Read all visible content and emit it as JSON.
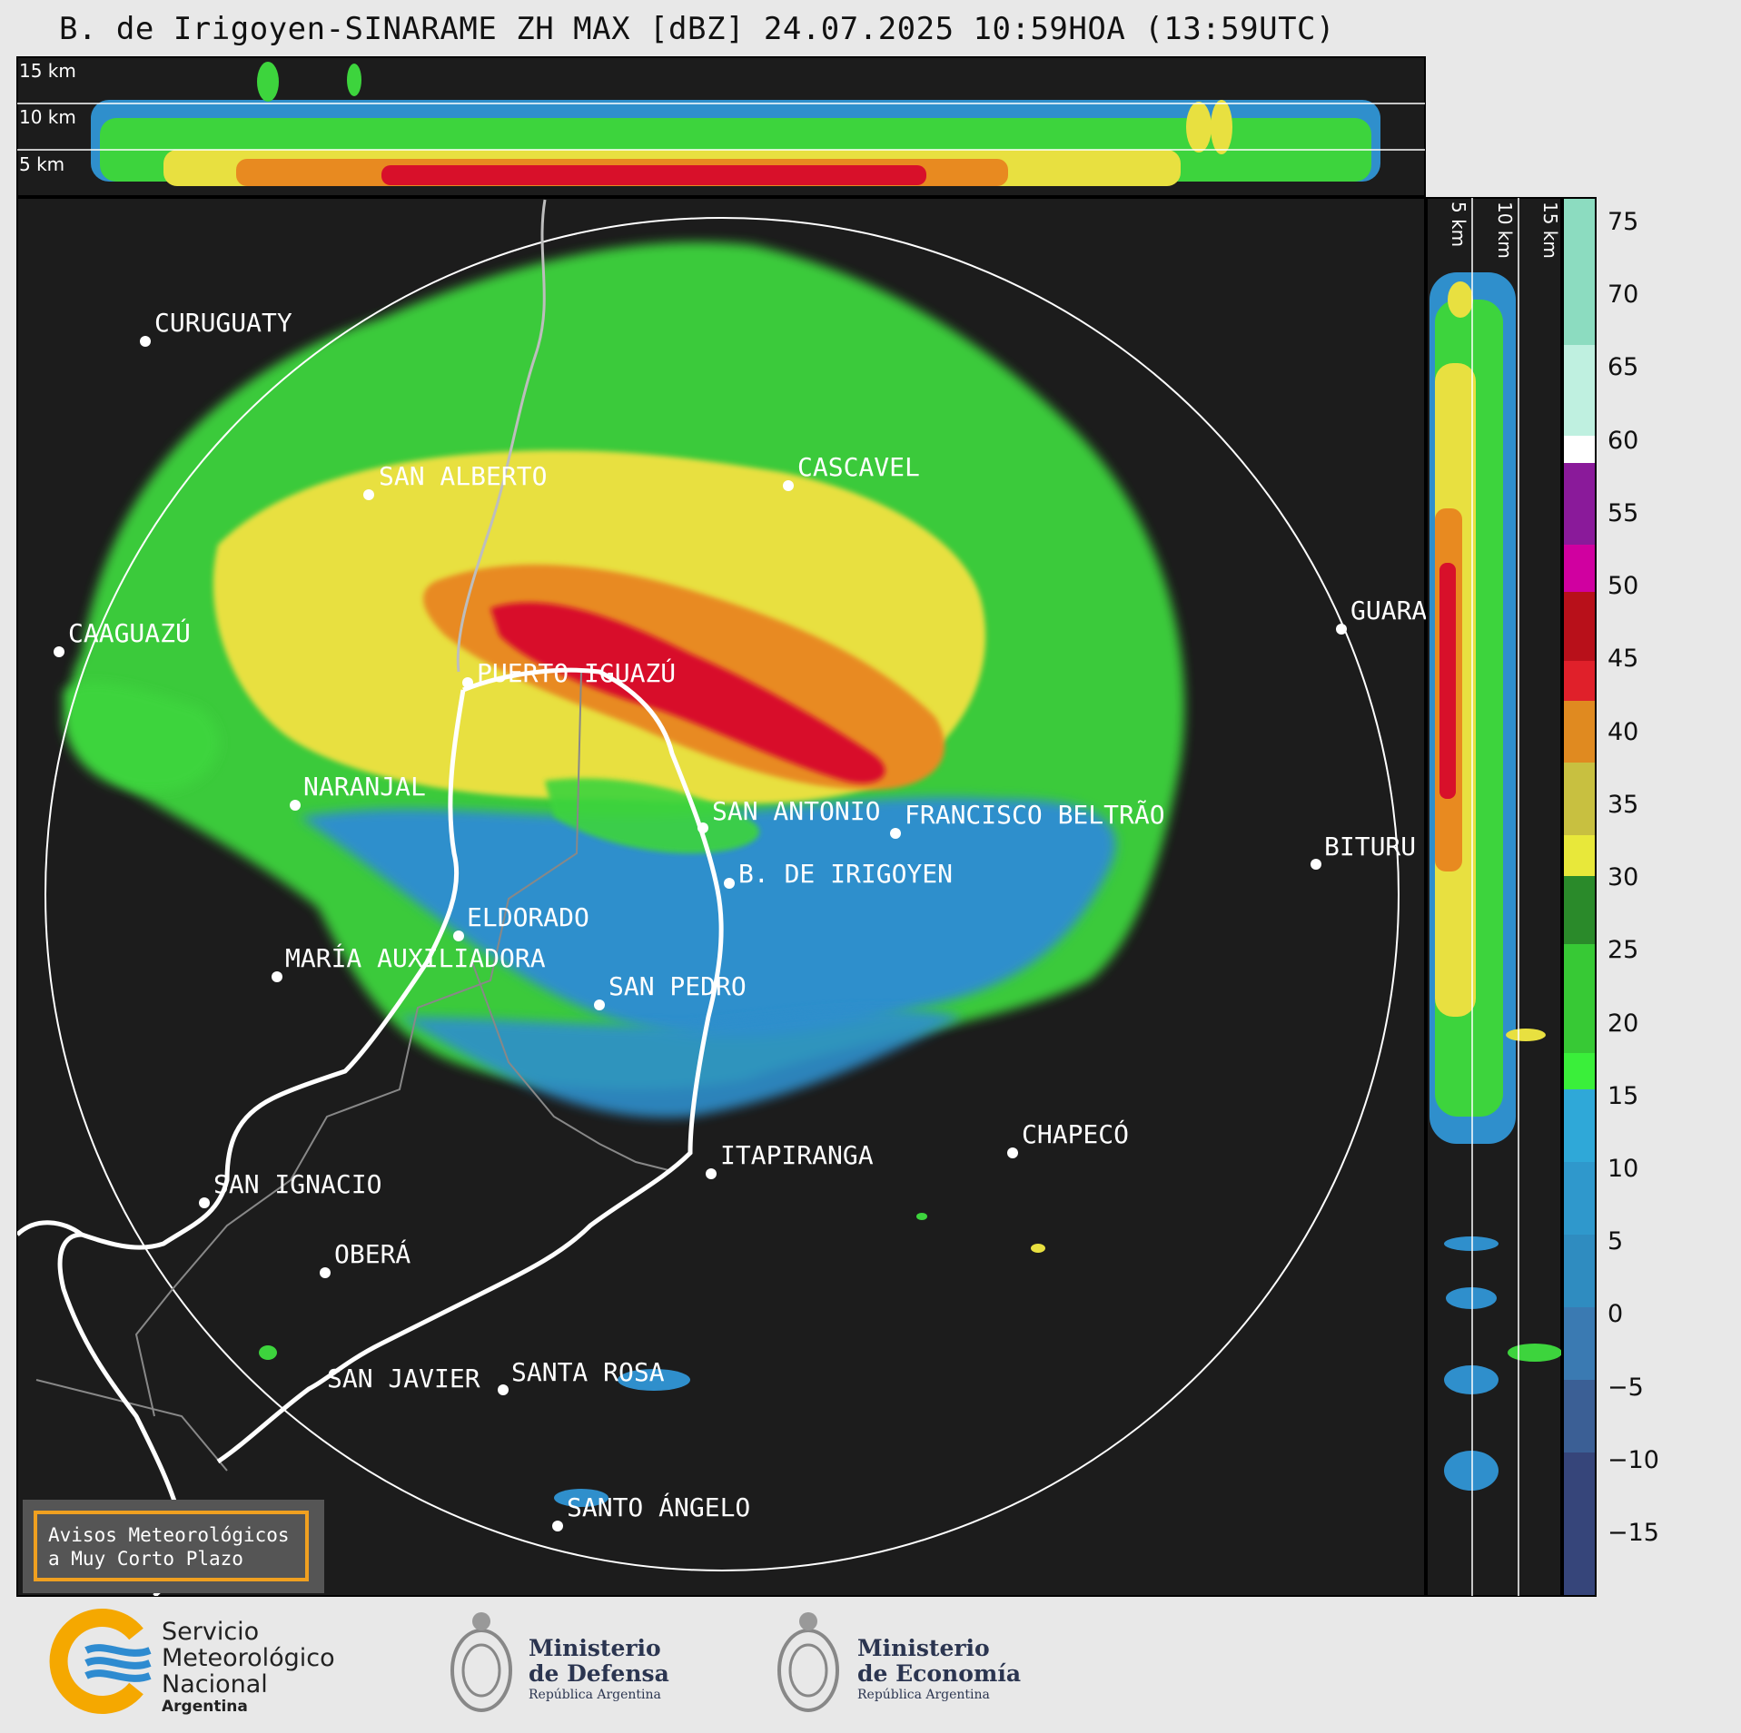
{
  "title": "B. de Irigoyen-SINARAME ZH MAX [dBZ] 24.07.2025 10:59HOA (13:59UTC)",
  "top_section": {
    "km_labels": [
      "15 km",
      "10 km",
      "5 km"
    ]
  },
  "side_section": {
    "km_labels": [
      "5 km",
      "10 km",
      "15 km"
    ]
  },
  "colorbar": {
    "ticks": [
      "75",
      "70",
      "65",
      "60",
      "55",
      "50",
      "45",
      "40",
      "35",
      "30",
      "25",
      "20",
      "15",
      "10",
      "5",
      "0",
      "−5",
      "−10",
      "−15"
    ]
  },
  "cities": [
    {
      "id": "curuguaty",
      "name": "CURUGUATY"
    },
    {
      "id": "san-alberto",
      "name": "SAN ALBERTO"
    },
    {
      "id": "cascavel",
      "name": "CASCAVEL"
    },
    {
      "id": "caaguazu",
      "name": "CAAGUAZÚ"
    },
    {
      "id": "guara",
      "name": "GUARA"
    },
    {
      "id": "puerto-iguazu",
      "name": "PUERTO IGUAZÚ"
    },
    {
      "id": "naranjal",
      "name": "NARANJAL"
    },
    {
      "id": "san-antonio",
      "name": "SAN ANTONIO"
    },
    {
      "id": "francisco-beltrao",
      "name": "FRANCISCO BELTRÃO"
    },
    {
      "id": "bituru",
      "name": "BITURU"
    },
    {
      "id": "b-de-irigoyen",
      "name": "B. DE IRIGOYEN"
    },
    {
      "id": "eldorado",
      "name": "ELDORADO"
    },
    {
      "id": "maria-auxiliadora",
      "name": "MARÍA AUXILIADORA"
    },
    {
      "id": "san-pedro",
      "name": "SAN PEDRO"
    },
    {
      "id": "chapeco",
      "name": "CHAPECÓ"
    },
    {
      "id": "itapiranga",
      "name": "ITAPIRANGA"
    },
    {
      "id": "san-ignacio",
      "name": "SAN IGNACIO"
    },
    {
      "id": "obera",
      "name": "OBERÁ"
    },
    {
      "id": "san-javier",
      "name": "SAN JAVIER"
    },
    {
      "id": "santa-rosa",
      "name": "SANTA ROSA"
    },
    {
      "id": "santo-angelo",
      "name": "SANTO ÁNGELO"
    }
  ],
  "warning_box": {
    "line1": "Avisos Meteorológicos",
    "line2": "a Muy Corto Plazo"
  },
  "logos": {
    "smn": {
      "line1": "Servicio",
      "line2": "Meteorológico",
      "line3": "Nacional",
      "line4": "Argentina"
    },
    "defensa": {
      "line1": "Ministerio",
      "line2": "de Defensa",
      "line3": "República Argentina"
    },
    "economia": {
      "line1": "Ministerio",
      "line2": "de Economía",
      "line3": "República Argentina"
    }
  },
  "colors": {
    "panel_bg": "#1c1c1c",
    "weak": "#2f8fcc",
    "light": "#3dd43d",
    "moderate": "#e8e040",
    "heavy": "#e88a20",
    "intense": "#d8102a"
  }
}
